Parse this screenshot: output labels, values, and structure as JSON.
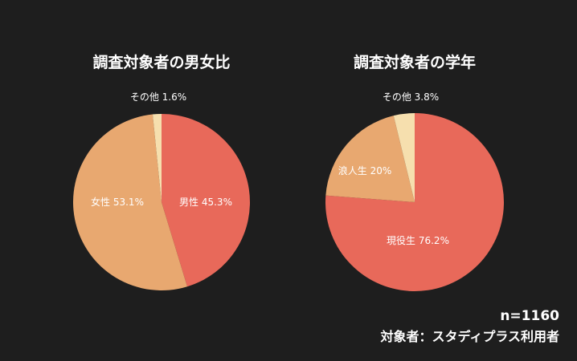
{
  "chart_data": [
    {
      "type": "pie",
      "title": "調査対象者の男女比",
      "start": "top",
      "direction": "clockwise",
      "slices": [
        {
          "label": "男性",
          "value": 45.3,
          "display": "男性 45.3%",
          "color": "#e8695a"
        },
        {
          "label": "女性",
          "value": 53.1,
          "display": "女性 53.1%",
          "color": "#e8a870"
        },
        {
          "label": "その他",
          "value": 1.6,
          "display": "その他 1.6%",
          "color": "#f6dfae"
        }
      ]
    },
    {
      "type": "pie",
      "title": "調査対象者の学年",
      "start": "top",
      "direction": "clockwise",
      "slices": [
        {
          "label": "現役生",
          "value": 76.2,
          "display": "現役生 76.2%",
          "color": "#e8695a"
        },
        {
          "label": "浪人生",
          "value": 20,
          "display": "浪人生 20%",
          "color": "#e8a870"
        },
        {
          "label": "その他",
          "value": 3.8,
          "display": "その他 3.8%",
          "color": "#f6dfae"
        }
      ]
    }
  ],
  "notes": {
    "sample_size": "n=1160",
    "respondents": "対象者：スタディプラス利用者"
  },
  "background": "#1e1e1e"
}
